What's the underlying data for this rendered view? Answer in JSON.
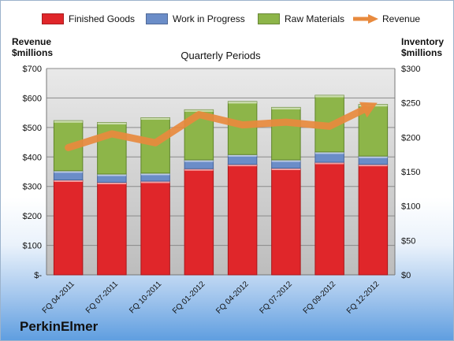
{
  "chart_data": {
    "type": "bar",
    "stacked": true,
    "title": "Quarterly Periods",
    "brand": "PerkinElmer",
    "categories": [
      "FQ 04-2011",
      "FQ 07-2011",
      "FQ 10-2011",
      "FQ 01-2012",
      "FQ 04-2012",
      "FQ 07-2012",
      "FQ 09-2012",
      "FQ 12-2012"
    ],
    "series": [
      {
        "name": "Finished Goods",
        "color": "#e0262a",
        "axis": "left",
        "values": [
          322,
          314,
          318,
          360,
          375,
          362,
          382,
          375
        ]
      },
      {
        "name": "Work in Progress",
        "color": "#6b8dc8",
        "axis": "left",
        "values": [
          31,
          28,
          27,
          30,
          33,
          28,
          35,
          28
        ]
      },
      {
        "name": "Raw Materials",
        "color": "#8db549",
        "axis": "left",
        "values": [
          170,
          175,
          188,
          170,
          180,
          178,
          192,
          175
        ]
      }
    ],
    "line_series": {
      "name": "Revenue",
      "color": "#e88a3e",
      "axis": "right",
      "values": [
        185,
        205,
        192,
        233,
        218,
        222,
        216,
        247
      ]
    },
    "ylabel": "Revenue\n$millions",
    "ylabel_right": "Inventory\n$millions",
    "ylim": [
      0,
      700
    ],
    "ylim_right": [
      0,
      300
    ],
    "y_ticks": [
      0,
      100,
      200,
      300,
      400,
      500,
      600,
      700
    ],
    "y_tick_labels": [
      "$-",
      "$100",
      "$200",
      "$300",
      "$400",
      "$500",
      "$600",
      "$700"
    ],
    "y_ticks_right": [
      0,
      50,
      100,
      150,
      200,
      250,
      300
    ],
    "y_tick_labels_right": [
      "$0",
      "$50",
      "$100",
      "$150",
      "$200",
      "$250",
      "$300"
    ],
    "grid": true,
    "legend_position": "top"
  }
}
